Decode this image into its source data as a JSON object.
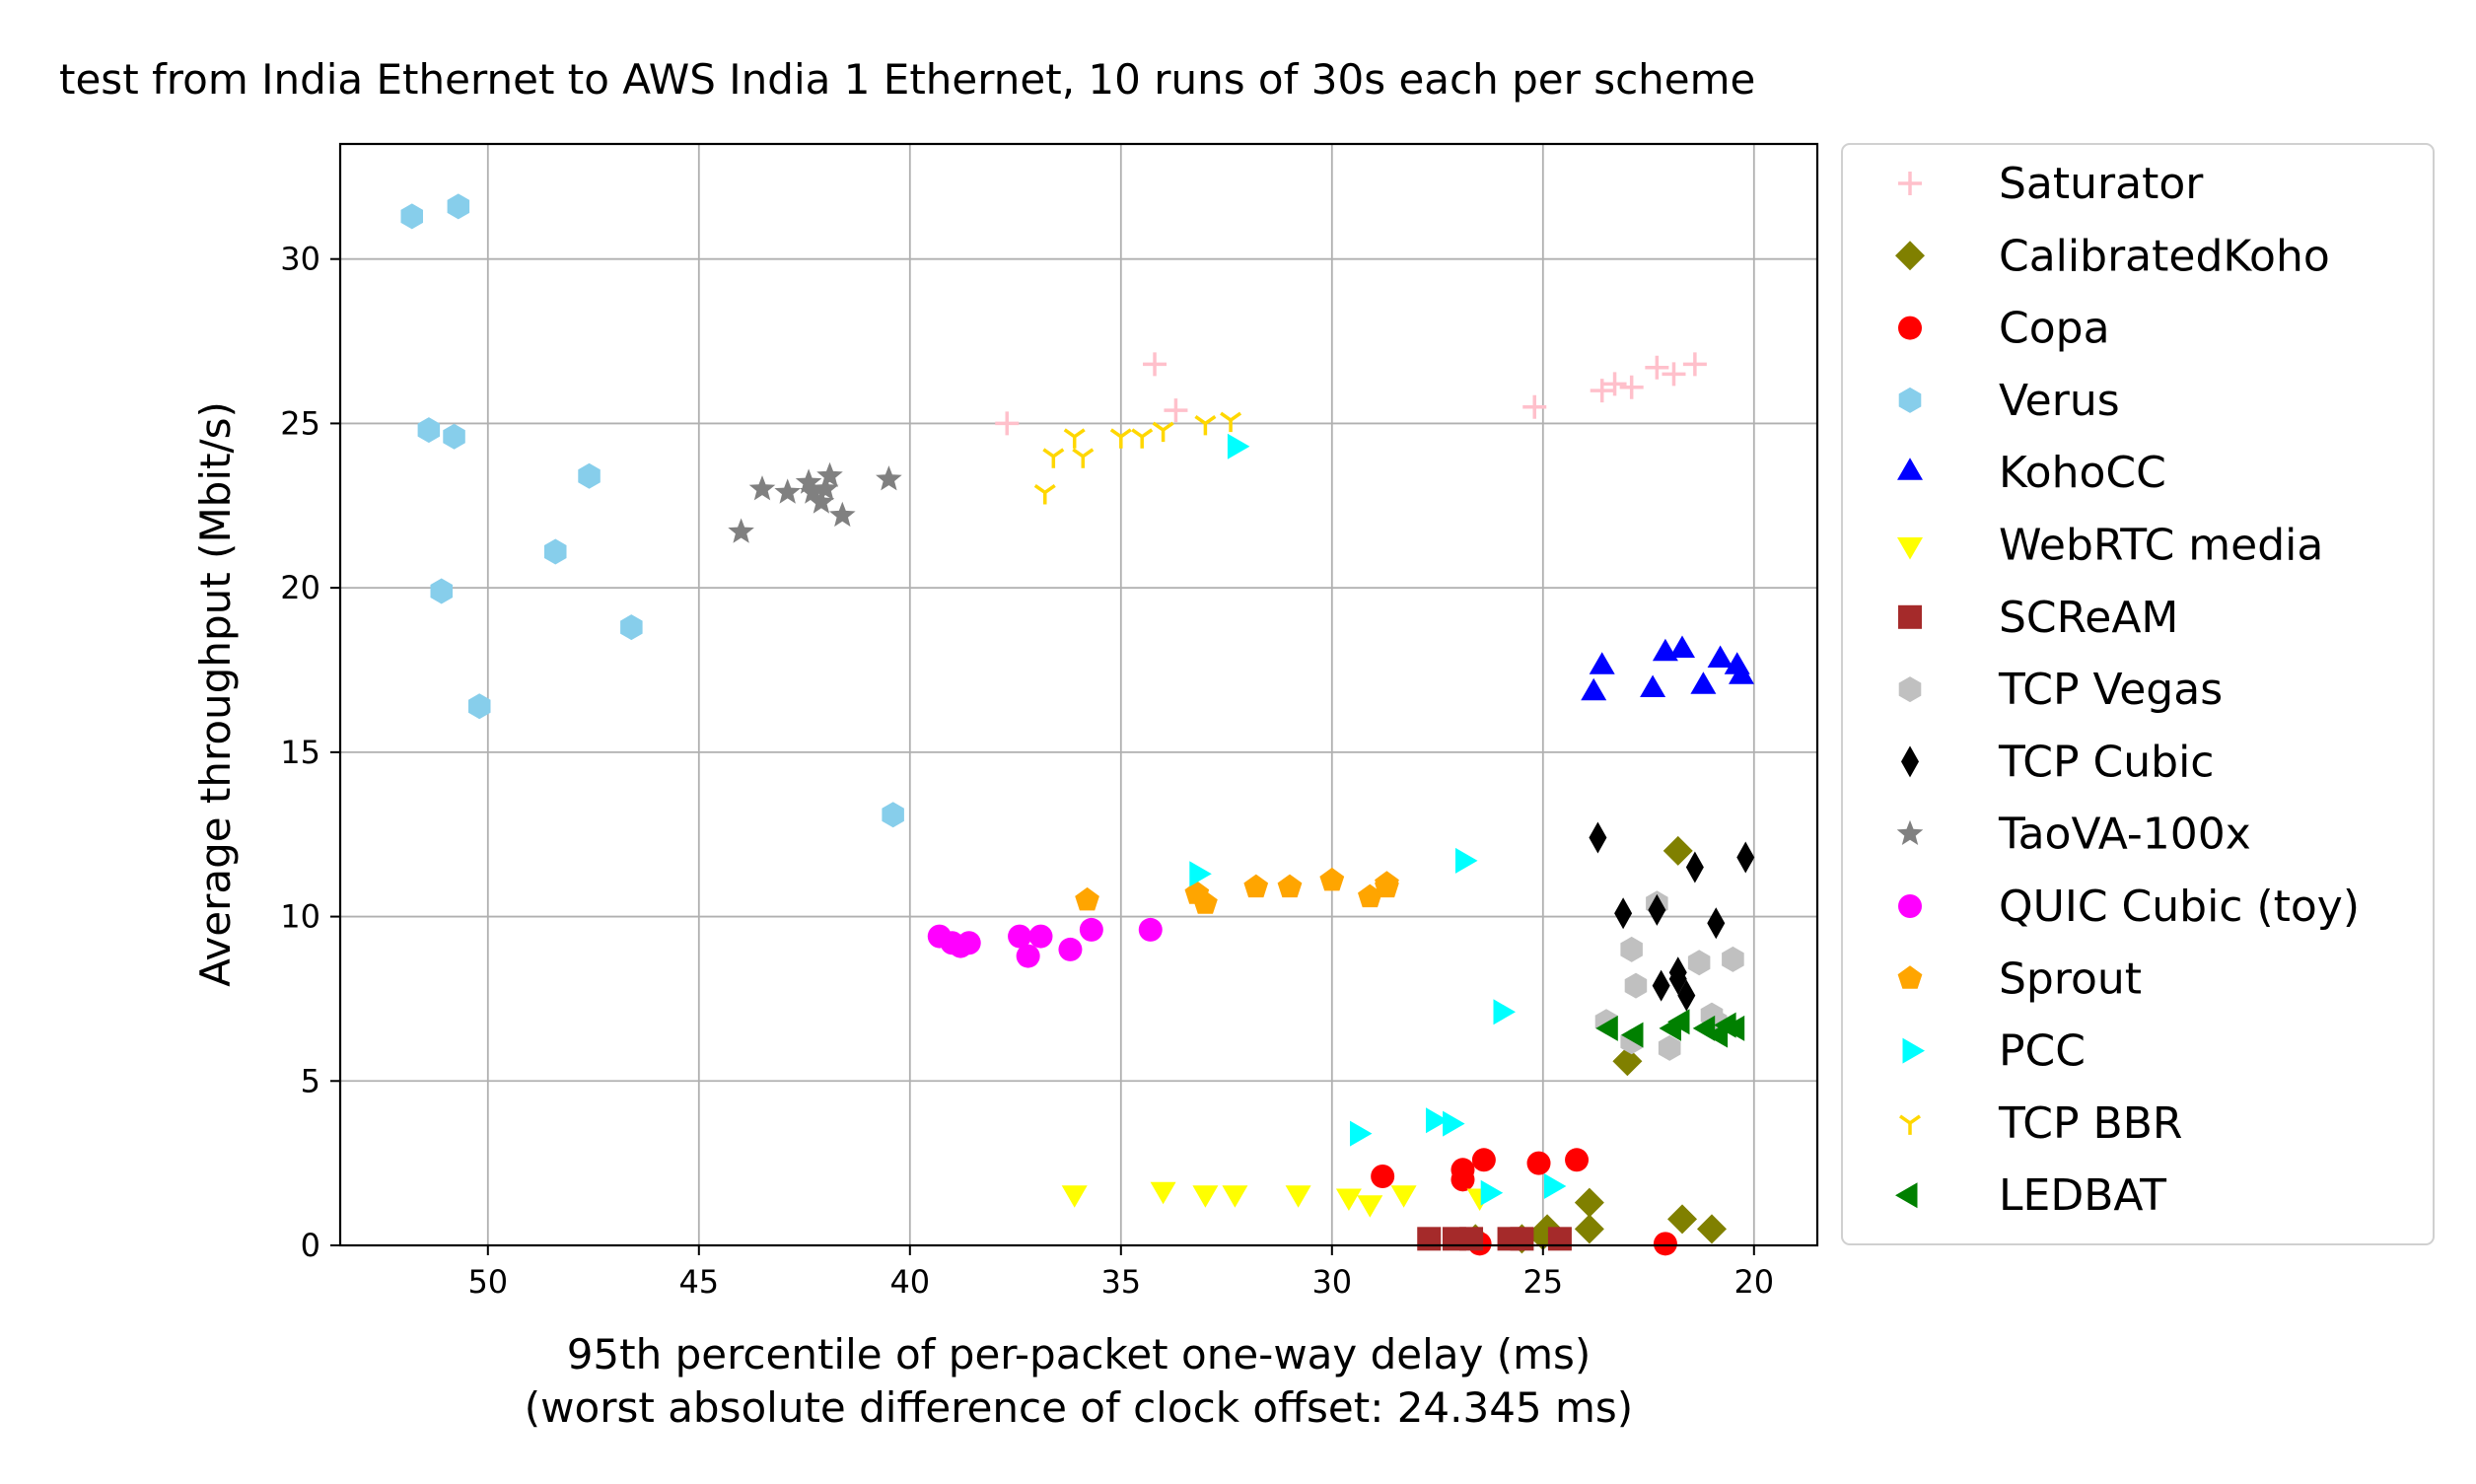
{
  "chart_data": {
    "type": "scatter",
    "title": "test from India Ethernet to AWS India 1 Ethernet, 10 runs of 30s each per scheme",
    "xlabel": "95th percentile of per-packet one-way delay (ms)",
    "xlabel2": "(worst absolute difference of clock offset: 24.345 ms)",
    "ylabel": "Average throughput (Mbit/s)",
    "xlim": [
      53.5,
      18.5
    ],
    "ylim": [
      0,
      33.5
    ],
    "x_inverted": true,
    "xticks": [
      50,
      45,
      40,
      35,
      30,
      25,
      20
    ],
    "yticks": [
      0,
      5,
      10,
      15,
      20,
      25,
      30
    ],
    "grid": true,
    "legend_position": "outside-right",
    "series": [
      {
        "name": "Saturator",
        "marker": "plus",
        "color": "#ffc0cb",
        "points": [
          [
            37.7,
            25.0
          ],
          [
            34.2,
            26.8
          ],
          [
            33.7,
            25.4
          ],
          [
            25.2,
            25.5
          ],
          [
            23.6,
            26.0
          ],
          [
            23.3,
            26.2
          ],
          [
            22.9,
            26.1
          ],
          [
            22.3,
            26.7
          ],
          [
            21.9,
            26.5
          ],
          [
            21.4,
            26.8
          ]
        ]
      },
      {
        "name": "CalibratedKoho",
        "marker": "diamond",
        "color": "#808000",
        "points": [
          [
            21.8,
            12.0
          ],
          [
            23.0,
            5.6
          ],
          [
            23.9,
            1.3
          ],
          [
            23.9,
            0.5
          ],
          [
            21.7,
            0.8
          ],
          [
            21.0,
            0.5
          ],
          [
            25.0,
            0.3
          ],
          [
            26.6,
            0.2
          ],
          [
            25.5,
            0.2
          ],
          [
            24.9,
            0.5
          ]
        ]
      },
      {
        "name": "Copa",
        "marker": "circle",
        "color": "#ff0000",
        "points": [
          [
            28.8,
            2.1
          ],
          [
            26.9,
            2.0
          ],
          [
            26.9,
            2.3
          ],
          [
            26.4,
            2.6
          ],
          [
            25.1,
            2.5
          ],
          [
            24.2,
            2.6
          ],
          [
            22.1,
            0.05
          ],
          [
            26.5,
            0.05
          ]
        ]
      },
      {
        "name": "Verus",
        "marker": "hexagon",
        "color": "#87ceeb",
        "points": [
          [
            51.8,
            31.3
          ],
          [
            50.7,
            31.6
          ],
          [
            51.4,
            24.8
          ],
          [
            50.8,
            24.6
          ],
          [
            47.6,
            23.4
          ],
          [
            48.4,
            21.1
          ],
          [
            51.1,
            19.9
          ],
          [
            46.6,
            18.8
          ],
          [
            50.2,
            16.4
          ],
          [
            40.4,
            13.1
          ]
        ]
      },
      {
        "name": "KohoCC",
        "marker": "triangle-up",
        "color": "#0000ff",
        "points": [
          [
            23.8,
            16.8
          ],
          [
            23.6,
            17.6
          ],
          [
            22.4,
            16.9
          ],
          [
            22.1,
            18.0
          ],
          [
            21.7,
            18.1
          ],
          [
            21.2,
            17.0
          ],
          [
            20.8,
            17.8
          ],
          [
            20.4,
            17.6
          ],
          [
            20.3,
            17.3
          ]
        ]
      },
      {
        "name": "WebRTC media",
        "marker": "triangle-down",
        "color": "#ffff00",
        "points": [
          [
            36.1,
            1.6
          ],
          [
            34.0,
            1.7
          ],
          [
            33.0,
            1.6
          ],
          [
            32.3,
            1.6
          ],
          [
            30.8,
            1.6
          ],
          [
            29.6,
            1.5
          ],
          [
            29.1,
            1.3
          ],
          [
            28.3,
            1.6
          ],
          [
            26.5,
            1.5
          ]
        ]
      },
      {
        "name": "SCReAM",
        "marker": "square",
        "color": "#a52a2a",
        "points": [
          [
            27.7,
            0.2
          ],
          [
            27.1,
            0.2
          ],
          [
            26.7,
            0.2
          ],
          [
            25.8,
            0.2
          ],
          [
            25.5,
            0.2
          ],
          [
            24.6,
            0.2
          ]
        ]
      },
      {
        "name": "TCP Vegas",
        "marker": "hexagon",
        "color": "#c0c0c0",
        "points": [
          [
            22.9,
            9.0
          ],
          [
            22.8,
            7.9
          ],
          [
            23.5,
            6.8
          ],
          [
            22.9,
            6.2
          ],
          [
            22.3,
            10.4
          ],
          [
            22.0,
            6.0
          ],
          [
            21.3,
            8.6
          ],
          [
            21.0,
            7.0
          ],
          [
            20.5,
            8.7
          ],
          [
            20.9,
            6.8
          ]
        ]
      },
      {
        "name": "TCP Cubic",
        "marker": "thin-diamond",
        "color": "#000000",
        "points": [
          [
            23.7,
            12.4
          ],
          [
            23.1,
            10.1
          ],
          [
            22.3,
            10.2
          ],
          [
            21.4,
            11.5
          ],
          [
            20.2,
            11.8
          ],
          [
            20.9,
            9.8
          ],
          [
            21.8,
            8.3
          ],
          [
            22.2,
            7.9
          ],
          [
            21.6,
            7.6
          ],
          [
            21.8,
            8.1
          ]
        ]
      },
      {
        "name": "TaoVA-100x",
        "marker": "star",
        "color": "#808080",
        "points": [
          [
            44.0,
            21.7
          ],
          [
            43.5,
            23.0
          ],
          [
            42.9,
            22.9
          ],
          [
            42.4,
            23.2
          ],
          [
            42.3,
            22.9
          ],
          [
            42.1,
            22.6
          ],
          [
            41.9,
            23.4
          ],
          [
            41.6,
            22.2
          ],
          [
            40.5,
            23.3
          ],
          [
            42.0,
            23.0
          ]
        ]
      },
      {
        "name": "QUIC Cubic (toy)",
        "marker": "circle",
        "color": "#ff00ff",
        "points": [
          [
            39.3,
            9.4
          ],
          [
            39.0,
            9.2
          ],
          [
            38.8,
            9.1
          ],
          [
            38.6,
            9.2
          ],
          [
            37.4,
            9.4
          ],
          [
            37.2,
            8.8
          ],
          [
            36.9,
            9.4
          ],
          [
            36.2,
            9.0
          ],
          [
            35.7,
            9.6
          ],
          [
            34.3,
            9.6
          ]
        ]
      },
      {
        "name": "Sprout",
        "marker": "pentagon",
        "color": "#ffa500",
        "points": [
          [
            35.8,
            10.5
          ],
          [
            33.2,
            10.7
          ],
          [
            33.0,
            10.4
          ],
          [
            31.8,
            10.9
          ],
          [
            31.0,
            10.9
          ],
          [
            30.0,
            11.1
          ],
          [
            29.1,
            10.6
          ],
          [
            28.7,
            10.9
          ],
          [
            28.7,
            11.0
          ]
        ]
      },
      {
        "name": "PCC",
        "marker": "triangle-right",
        "color": "#00ffff",
        "points": [
          [
            32.3,
            24.3
          ],
          [
            33.2,
            11.3
          ],
          [
            26.9,
            11.7
          ],
          [
            26.0,
            7.1
          ],
          [
            29.4,
            3.4
          ],
          [
            27.6,
            3.8
          ],
          [
            27.2,
            3.7
          ],
          [
            26.3,
            1.6
          ],
          [
            24.8,
            1.8
          ]
        ]
      },
      {
        "name": "TCP BBR",
        "marker": "tri-down",
        "color": "#ffd700",
        "points": [
          [
            36.8,
            22.9
          ],
          [
            36.6,
            24.0
          ],
          [
            36.1,
            24.6
          ],
          [
            35.9,
            24.0
          ],
          [
            35.0,
            24.6
          ],
          [
            34.5,
            24.6
          ],
          [
            34.0,
            24.8
          ],
          [
            33.0,
            25.0
          ],
          [
            32.4,
            25.1
          ]
        ]
      },
      {
        "name": "LEDBAT",
        "marker": "triangle-left",
        "color": "#008000",
        "points": [
          [
            23.4,
            6.6
          ],
          [
            22.8,
            6.4
          ],
          [
            21.9,
            6.6
          ],
          [
            21.7,
            6.8
          ],
          [
            21.1,
            6.6
          ],
          [
            20.8,
            6.4
          ],
          [
            20.6,
            6.7
          ],
          [
            20.4,
            6.6
          ]
        ]
      }
    ]
  }
}
